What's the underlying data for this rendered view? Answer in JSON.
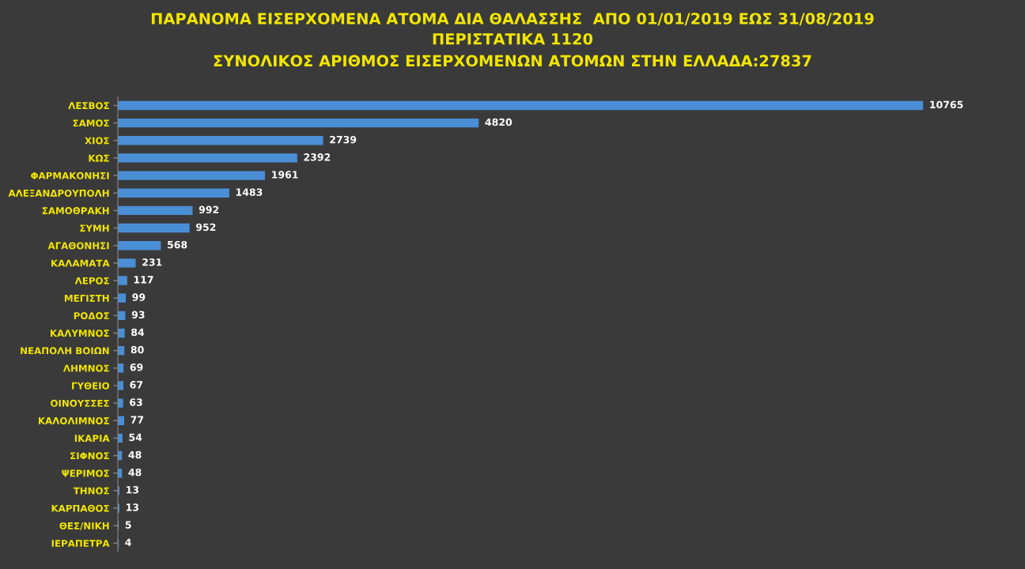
{
  "chart_data": {
    "type": "bar",
    "orientation": "horizontal",
    "title": "ΠΑΡΑΝΟΜΑ ΕΙΣΕΡΧΟΜΕΝΑ ΑΤΟΜΑ ΔΙΑ ΘΑΛΑΣΣΗΣ  ΑΠΟ 01/01/2019 ΕΩΣ 31/08/2019",
    "subtitle": "ΠΕΡΙΣΤΑΤΙΚΑ 1120\nΣΥΝΟΛΙΚΟΣ ΑΡΙΘΜΟΣ ΕΙΣΕΡΧΟΜΕΝΩΝ ΑΤΟΜΩΝ ΣΤΗΝ ΕΛΛΑΔΑ:27837",
    "categories": [
      "ΛΕΣΒΟΣ",
      "ΣΑΜΟΣ",
      "ΧΙΟΣ",
      "ΚΩΣ",
      "ΦΑΡΜΑΚΟΝΗΣΙ",
      "ΑΛΕΞΑΝΔΡΟΥΠΟΛΗ",
      "ΣΑΜΟΘΡΑΚΗ",
      "ΣΥΜΗ",
      "ΑΓΑΘΟΝΗΣΙ",
      "ΚΑΛΑΜΑΤΑ",
      "ΛΕΡΟΣ",
      "ΜΕΓΙΣΤΗ",
      "ΡΟΔΟΣ",
      "ΚΑΛΥΜΝΟΣ",
      "ΝΕΑΠΟΛΗ ΒΟΙΩΝ",
      "ΛΗΜΝΟΣ",
      "ΓΥΘΕΙΟ",
      "ΟΙΝΟΥΣΣΕΣ",
      "ΚΑΛΟΛΙΜΝΟΣ",
      "ΙΚΑΡΙΑ",
      "ΣΙΦΝΟΣ",
      "ΨΕΡΙΜΟΣ",
      "ΤΗΝΟΣ",
      "ΚΑΡΠΑΘΟΣ",
      "ΘΕΣ/ΝΙΚΗ",
      "ΙΕΡΑΠΕΤΡΑ"
    ],
    "values": [
      10765,
      4820,
      2739,
      2392,
      1961,
      1483,
      992,
      952,
      568,
      231,
      117,
      99,
      93,
      84,
      80,
      69,
      67,
      63,
      77,
      54,
      48,
      48,
      13,
      13,
      5,
      4
    ],
    "color": "#4a8fd6",
    "data_labels": true,
    "tick_labels": "y",
    "grid": false,
    "legend": false
  }
}
